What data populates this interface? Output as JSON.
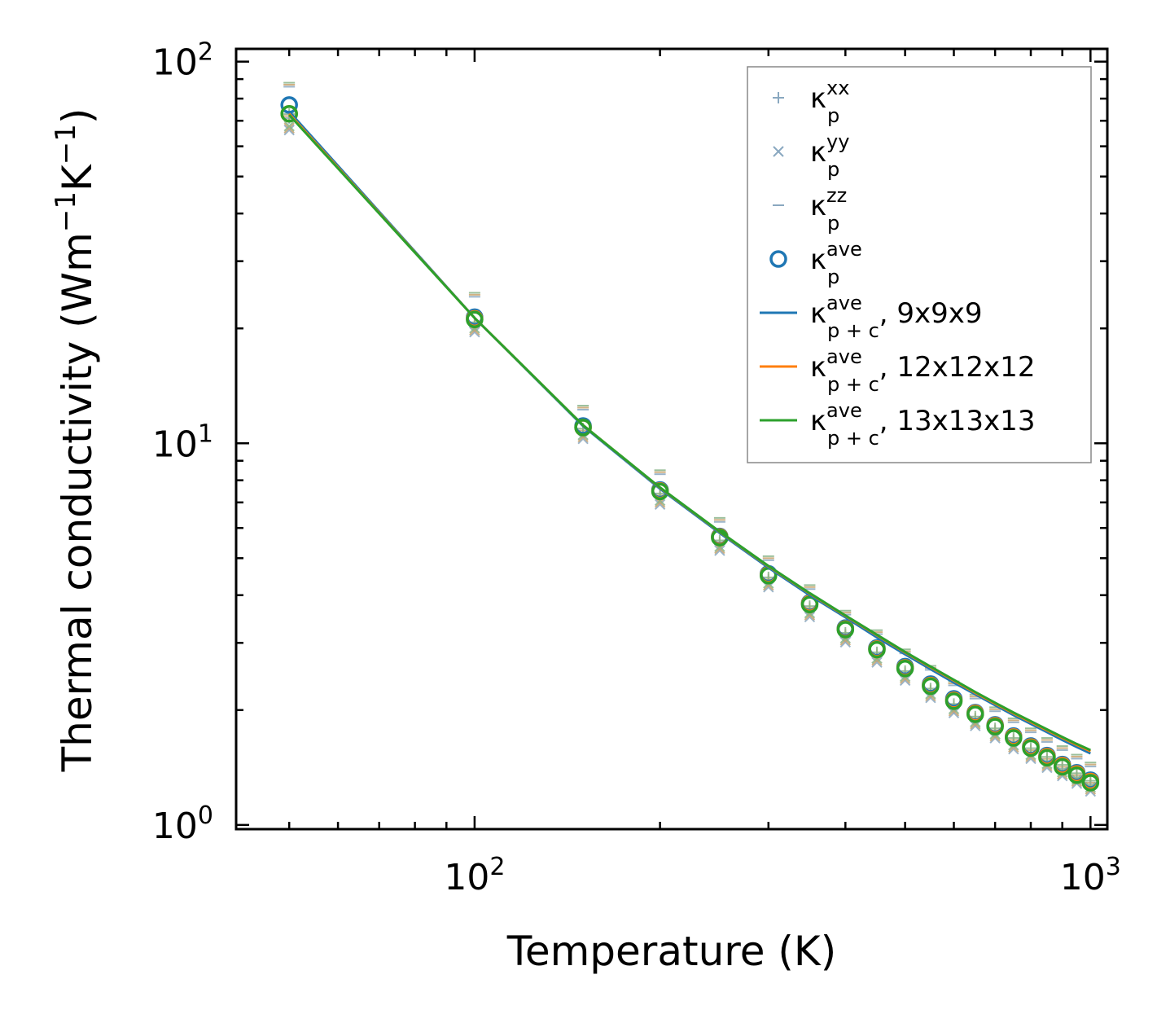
{
  "chart_data": {
    "type": "line",
    "xscale": "log",
    "yscale": "log",
    "xlim": [
      41,
      1065
    ],
    "ylim": [
      0.975,
      108
    ],
    "xlabel": "Temperature (K)",
    "ylabel_main": "Thermal conductivity (Wm",
    "ylabel_sup1": "−1",
    "ylabel_mid": "K",
    "ylabel_sup2": "−1",
    "ylabel_end": ")",
    "x_ticks": [
      {
        "value": 100,
        "base": "10",
        "exp": "2"
      },
      {
        "value": 1000,
        "base": "10",
        "exp": "3"
      }
    ],
    "y_ticks": [
      {
        "value": 1,
        "base": "10",
        "exp": "0"
      },
      {
        "value": 10,
        "base": "10",
        "exp": "1"
      },
      {
        "value": 100,
        "base": "10",
        "exp": "2"
      }
    ],
    "temperatures": [
      50,
      100,
      150,
      200,
      250,
      300,
      350,
      400,
      450,
      500,
      550,
      600,
      650,
      700,
      750,
      800,
      850,
      900,
      950,
      1000
    ],
    "component_series": [
      {
        "name": "kxx",
        "marker": "plus",
        "values": [
          72,
          20.5,
          10.8,
          7.3,
          5.5,
          4.4,
          3.7,
          3.15,
          2.8,
          2.5,
          2.25,
          2.05,
          1.9,
          1.77,
          1.67,
          1.57,
          1.49,
          1.42,
          1.35,
          1.29
        ]
      },
      {
        "name": "kyy",
        "marker": "x",
        "values": [
          67,
          19.8,
          10.4,
          7.0,
          5.3,
          4.25,
          3.55,
          3.05,
          2.7,
          2.42,
          2.18,
          1.99,
          1.84,
          1.71,
          1.6,
          1.51,
          1.43,
          1.36,
          1.3,
          1.24
        ]
      },
      {
        "name": "kzz",
        "marker": "hline",
        "values": [
          87,
          24.5,
          12.4,
          8.4,
          6.3,
          5.0,
          4.2,
          3.6,
          3.2,
          2.85,
          2.58,
          2.35,
          2.17,
          2.01,
          1.88,
          1.77,
          1.67,
          1.59,
          1.51,
          1.44
        ]
      }
    ],
    "ave_series": [
      {
        "name": "9x9x9",
        "values": [
          77,
          21.4,
          11.1,
          7.55,
          5.7,
          4.55,
          3.82,
          3.28,
          2.91,
          2.6,
          2.34,
          2.14,
          1.97,
          1.83,
          1.71,
          1.61,
          1.52,
          1.44,
          1.37,
          1.31
        ]
      },
      {
        "name": "12x12x12",
        "values": [
          73,
          21.2,
          11.0,
          7.5,
          5.68,
          4.52,
          3.8,
          3.26,
          2.89,
          2.58,
          2.32,
          2.12,
          1.96,
          1.82,
          1.7,
          1.6,
          1.51,
          1.43,
          1.36,
          1.3
        ]
      },
      {
        "name": "13x13x13",
        "values": [
          73,
          21.1,
          11.0,
          7.48,
          5.66,
          4.5,
          3.78,
          3.25,
          2.88,
          2.57,
          2.31,
          2.11,
          1.95,
          1.81,
          1.69,
          1.59,
          1.5,
          1.42,
          1.35,
          1.29
        ]
      }
    ],
    "line_series": [
      {
        "name": "9x9x9",
        "color": "#1f77b4",
        "values": [
          74,
          21.3,
          11.1,
          7.6,
          5.82,
          4.72,
          4.0,
          3.5,
          3.1,
          2.8,
          2.56,
          2.36,
          2.2,
          2.06,
          1.94,
          1.84,
          1.75,
          1.67,
          1.6,
          1.54
        ]
      },
      {
        "name": "12x12x12",
        "color": "#ff7f0e",
        "values": [
          73,
          21.3,
          11.15,
          7.65,
          5.86,
          4.76,
          4.04,
          3.53,
          3.14,
          2.83,
          2.59,
          2.39,
          2.22,
          2.08,
          1.96,
          1.86,
          1.77,
          1.69,
          1.62,
          1.56
        ]
      },
      {
        "name": "13x13x13",
        "color": "#2ca02c",
        "values": [
          72.5,
          21.3,
          11.15,
          7.66,
          5.87,
          4.77,
          4.05,
          3.54,
          3.15,
          2.84,
          2.6,
          2.4,
          2.23,
          2.09,
          1.97,
          1.87,
          1.78,
          1.7,
          1.63,
          1.57
        ]
      }
    ],
    "colors": {
      "blue": "#1f77b4",
      "orange": "#ff7f0e",
      "green": "#2ca02c",
      "component_gray": "#8aa8c0"
    },
    "legend": {
      "position": "top-right",
      "entries": [
        {
          "marker": "plus",
          "color": "#8aa8c0",
          "base": "κ",
          "sub": "p",
          "sup": "xx",
          "suffix": ""
        },
        {
          "marker": "x",
          "color": "#8aa8c0",
          "base": "κ",
          "sub": "p",
          "sup": "yy",
          "suffix": ""
        },
        {
          "marker": "hline",
          "color": "#8aa8c0",
          "base": "κ",
          "sub": "p",
          "sup": "zz",
          "suffix": ""
        },
        {
          "marker": "circle",
          "color": "#1f77b4",
          "base": "κ",
          "sub": "p",
          "sup": "ave",
          "suffix": ""
        },
        {
          "marker": "line",
          "color": "#1f77b4",
          "base": "κ",
          "sub": "p + c",
          "sup": "ave",
          "suffix": ", 9x9x9"
        },
        {
          "marker": "line",
          "color": "#ff7f0e",
          "base": "κ",
          "sub": "p + c",
          "sup": "ave",
          "suffix": ", 12x12x12"
        },
        {
          "marker": "line",
          "color": "#2ca02c",
          "base": "κ",
          "sub": "p + c",
          "sup": "ave",
          "suffix": ", 13x13x13"
        }
      ]
    }
  }
}
